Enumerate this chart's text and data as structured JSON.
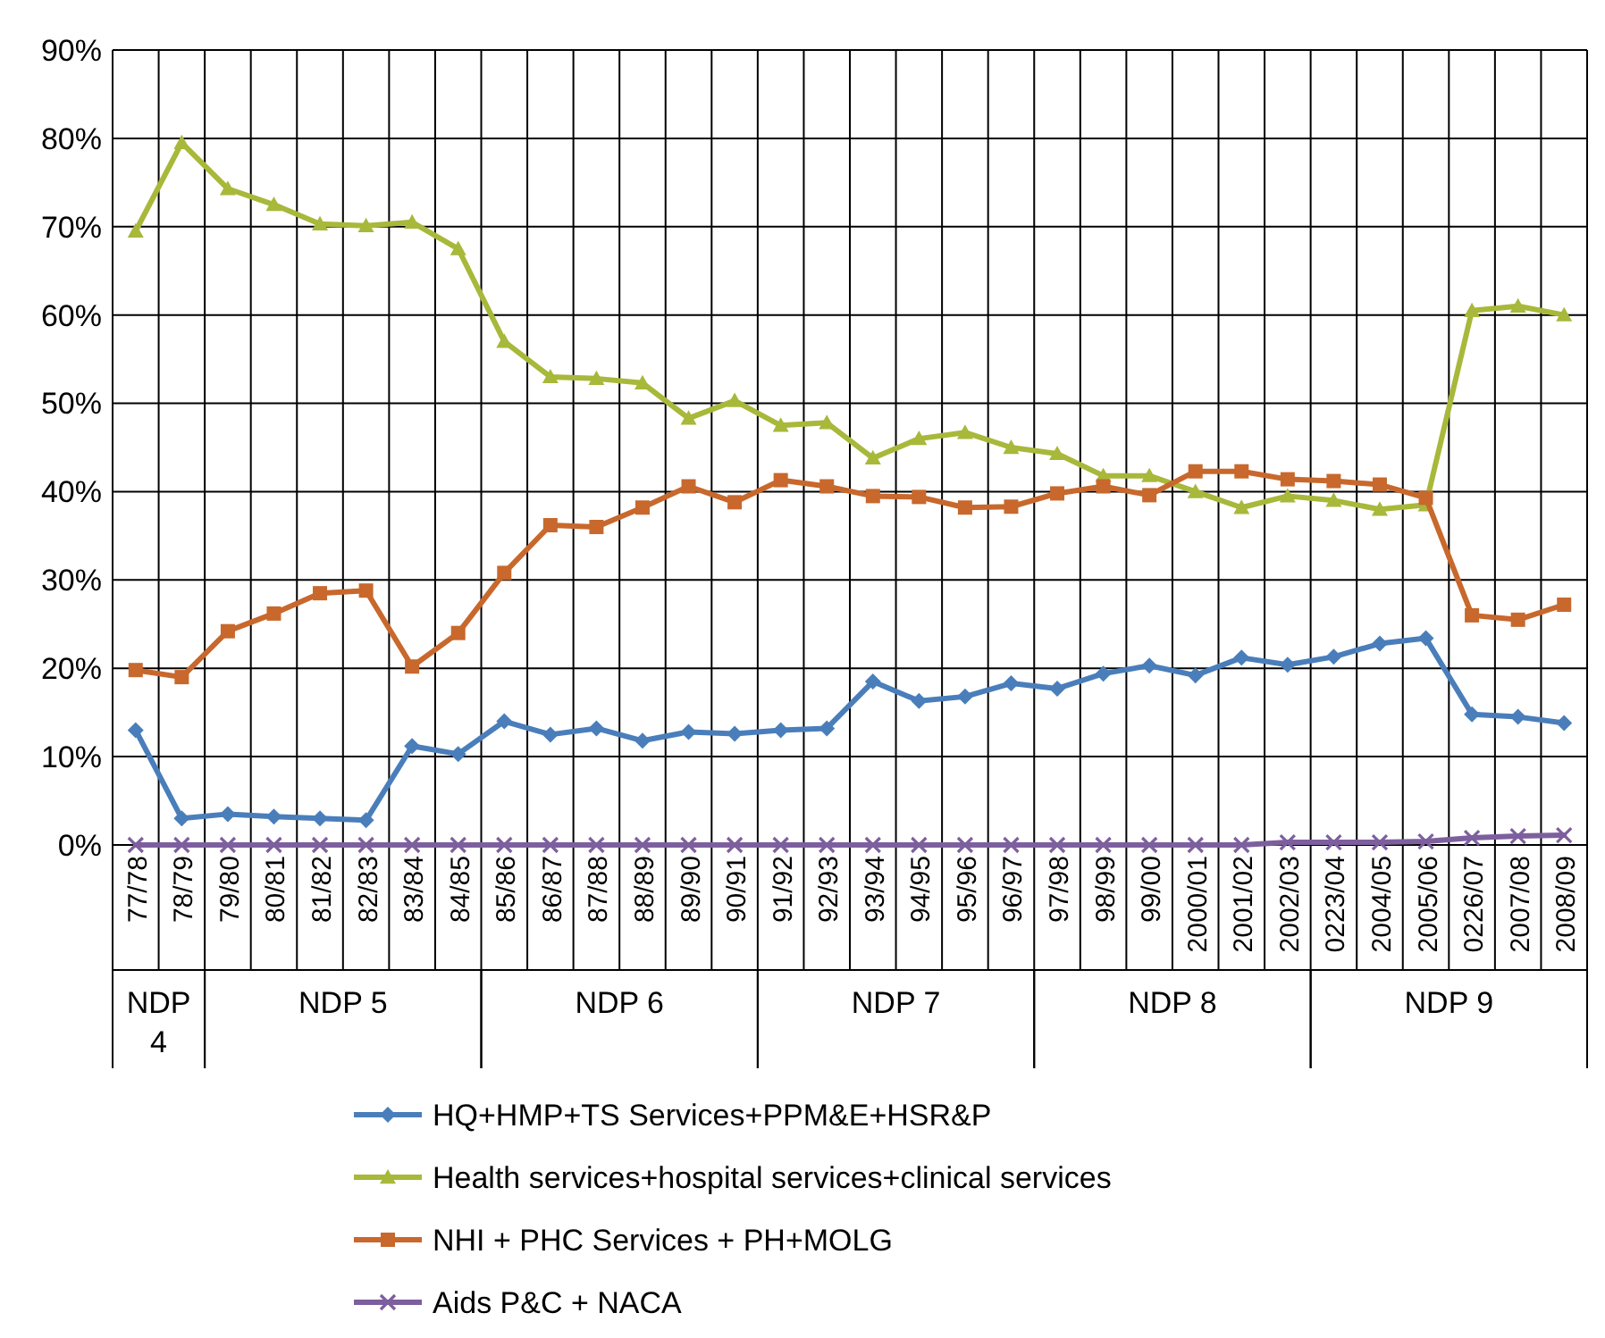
{
  "chart_data": {
    "type": "line",
    "categories": [
      "77/78",
      "78/79",
      "79/80",
      "80/81",
      "81/82",
      "82/83",
      "83/84",
      "84/85",
      "85/86",
      "86/87",
      "87/88",
      "88/89",
      "89/90",
      "90/91",
      "91/92",
      "92/93",
      "93/94",
      "94/95",
      "95/96",
      "96/97",
      "97/98",
      "98/99",
      "99/00",
      "2000/01",
      "2001/02",
      "2002/03",
      "0223/04",
      "2004/05",
      "2005/06",
      "0226/07",
      "2007/08",
      "2008/09"
    ],
    "series": [
      {
        "name": "HQ+HMP+TS Services+PPM&E+HSR&P",
        "color": "#4a7ebb",
        "marker": "diamond",
        "values": [
          13,
          3,
          3.5,
          3.2,
          3,
          2.8,
          11.2,
          10.3,
          14,
          12.5,
          13.2,
          11.8,
          12.8,
          12.6,
          13,
          13.2,
          18.5,
          16.3,
          16.8,
          18.3,
          17.7,
          19.4,
          20.3,
          19.2,
          21.2,
          20.4,
          21.3,
          22.8,
          23.4,
          14.8,
          14.5,
          13.8
        ]
      },
      {
        "name": "Health services+hospital services+clinical services",
        "color": "#a8b83a",
        "marker": "triangle",
        "values": [
          69.5,
          79.5,
          74.3,
          72.5,
          70.3,
          70.1,
          70.5,
          67.5,
          57,
          53,
          52.8,
          52.3,
          48.3,
          50.3,
          47.5,
          47.8,
          43.8,
          46,
          46.7,
          45,
          44.3,
          41.8,
          41.8,
          40,
          38.2,
          39.5,
          39,
          38,
          38.5,
          60.5,
          61,
          60
        ]
      },
      {
        "name": "NHI + PHC Services + PH+MOLG",
        "color": "#c8682c",
        "marker": "square",
        "values": [
          19.8,
          19,
          24.2,
          26.2,
          28.5,
          28.8,
          20.2,
          24,
          30.8,
          36.2,
          36,
          38.2,
          40.6,
          38.8,
          41.3,
          40.6,
          39.5,
          39.4,
          38.2,
          38.3,
          39.8,
          40.6,
          39.6,
          42.3,
          42.3,
          41.4,
          41.2,
          40.8,
          39.3,
          26,
          25.5,
          27.2
        ]
      },
      {
        "name": "Aids P&C + NACA",
        "color": "#7d5f9e",
        "marker": "cross",
        "values": [
          0,
          0,
          0,
          0,
          0,
          0,
          0,
          0,
          0,
          0,
          0,
          0,
          0,
          0,
          0,
          0,
          0,
          0,
          0,
          0,
          0,
          0,
          0,
          0,
          0,
          0.3,
          0.3,
          0.3,
          0.4,
          0.8,
          1,
          1.1
        ]
      }
    ],
    "ylim": [
      0,
      90
    ],
    "yticks": [
      {
        "value": 0,
        "label": "0%"
      },
      {
        "value": 10,
        "label": "10%"
      },
      {
        "value": 20,
        "label": "20%"
      },
      {
        "value": 30,
        "label": "30%"
      },
      {
        "value": 40,
        "label": "40%"
      },
      {
        "value": 50,
        "label": "50%"
      },
      {
        "value": 60,
        "label": "60%"
      },
      {
        "value": 70,
        "label": "70%"
      },
      {
        "value": 80,
        "label": "80%"
      },
      {
        "value": 90,
        "label": "90%"
      }
    ],
    "grid": true,
    "legend": "bottom",
    "annotations": [
      "NDP 4",
      "NDP 5",
      "NDP 6",
      "NDP 7",
      "NDP 8",
      "NDP 9"
    ]
  }
}
